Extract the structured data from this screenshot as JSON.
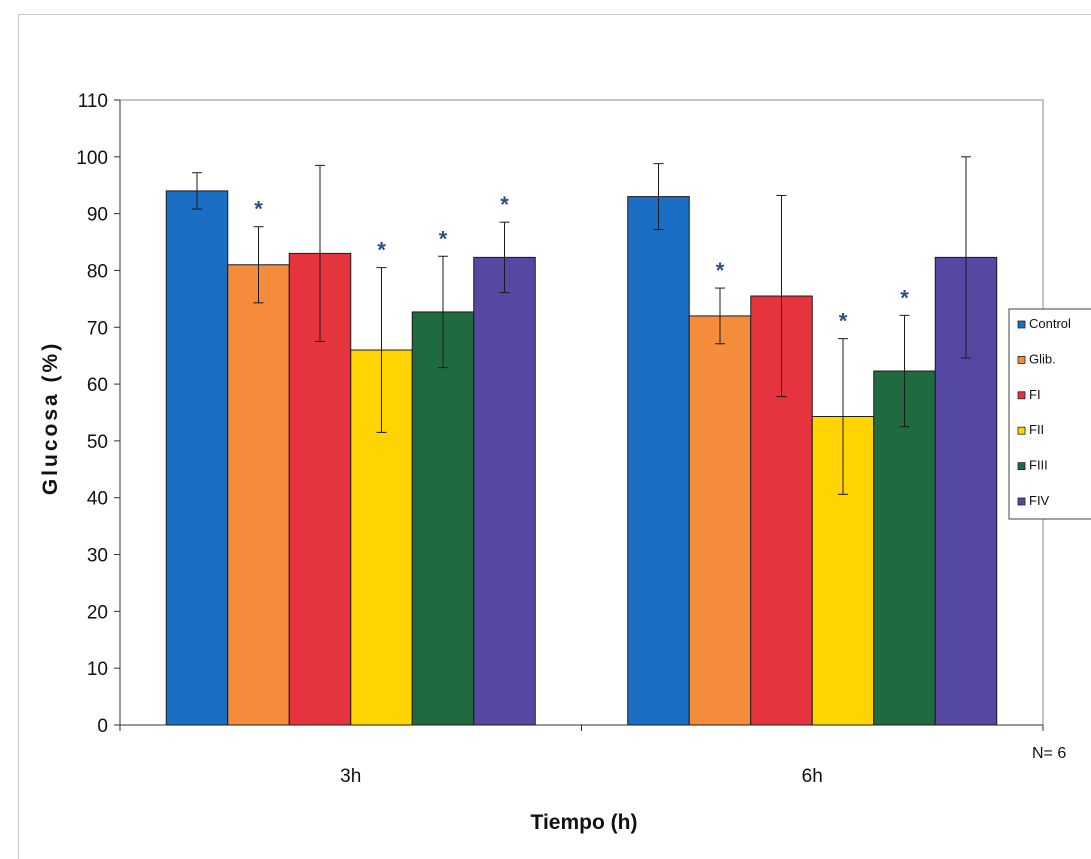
{
  "chart_data": {
    "type": "bar",
    "title": "",
    "xlabel": "Tiempo (h)",
    "ylabel": "Glucosa (%)",
    "ylim": [
      0,
      110
    ],
    "yticks": [
      0,
      10,
      20,
      30,
      40,
      50,
      60,
      70,
      80,
      90,
      100,
      110
    ],
    "categories": [
      "3h",
      "6h"
    ],
    "grid": false,
    "legend_position": "right",
    "series": [
      {
        "name": "Control",
        "color": "#1a6fc4",
        "values": [
          94,
          93
        ],
        "error": [
          3.2,
          5.8
        ],
        "significant": [
          false,
          false
        ]
      },
      {
        "name": "Glib.",
        "color": "#f58c3c",
        "values": [
          81,
          72
        ],
        "error": [
          6.7,
          4.9
        ],
        "significant": [
          true,
          true
        ]
      },
      {
        "name": "FI",
        "color": "#e5343d",
        "values": [
          83,
          75.5
        ],
        "error": [
          15.5,
          17.7
        ],
        "significant": [
          false,
          false
        ]
      },
      {
        "name": "FII",
        "color": "#ffd400",
        "values": [
          66,
          54.3
        ],
        "error": [
          14.5,
          13.7
        ],
        "significant": [
          true,
          true
        ]
      },
      {
        "name": "FIII",
        "color": "#1f6a3f",
        "values": [
          72.7,
          62.3
        ],
        "error": [
          9.8,
          9.8
        ],
        "significant": [
          true,
          true
        ]
      },
      {
        "name": "FIV",
        "color": "#5548a3",
        "values": [
          82.3,
          82.3
        ],
        "error": [
          6.2,
          17.7
        ],
        "significant": [
          true,
          false
        ]
      }
    ],
    "significance_marker": "*",
    "annotation": "N= 6"
  }
}
